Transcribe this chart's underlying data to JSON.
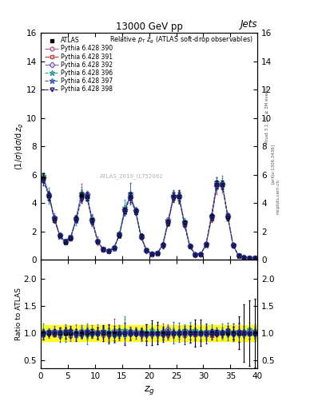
{
  "title_top": "13000 GeV pp",
  "title_right": "Jets",
  "plot_title": "Relative p_T z_g (ATLAS soft-drop observables)",
  "ylabel_main": "(1/σ) dσ/d z_g",
  "ylabel_ratio": "Ratio to ATLAS",
  "xlabel": "z_g",
  "xlim": [
    0,
    40
  ],
  "ylim_main": [
    0,
    16
  ],
  "ylim_ratio": [
    0.35,
    2.35
  ],
  "yticks_main": [
    0,
    2,
    4,
    6,
    8,
    10,
    12,
    14,
    16
  ],
  "yticks_ratio": [
    0.5,
    1.0,
    1.5,
    2.0
  ],
  "watermark": "ATLAS_2019_I1752062",
  "green_band": 0.05,
  "yellow_band": 0.15,
  "series": [
    {
      "label": "ATLAS",
      "color": "#000000",
      "marker": "s",
      "markersize": 3.5,
      "linestyle": "none",
      "filled": true
    },
    {
      "label": "Pythia 6.428 390",
      "color": "#b06090",
      "marker": "o",
      "markersize": 3.5,
      "linestyle": "-.",
      "filled": false
    },
    {
      "label": "Pythia 6.428 391",
      "color": "#c04040",
      "marker": "s",
      "markersize": 3.5,
      "linestyle": "-.",
      "filled": false
    },
    {
      "label": "Pythia 6.428 392",
      "color": "#8060c0",
      "marker": "D",
      "markersize": 3.5,
      "linestyle": "-.",
      "filled": false
    },
    {
      "label": "Pythia 6.428 396",
      "color": "#30a090",
      "marker": "*",
      "markersize": 5,
      "linestyle": "--",
      "filled": false
    },
    {
      "label": "Pythia 6.428 397",
      "color": "#4060c0",
      "marker": "*",
      "markersize": 5,
      "linestyle": "--",
      "filled": false
    },
    {
      "label": "Pythia 6.428 398",
      "color": "#202080",
      "marker": "v",
      "markersize": 3.5,
      "linestyle": "--",
      "filled": false
    }
  ]
}
